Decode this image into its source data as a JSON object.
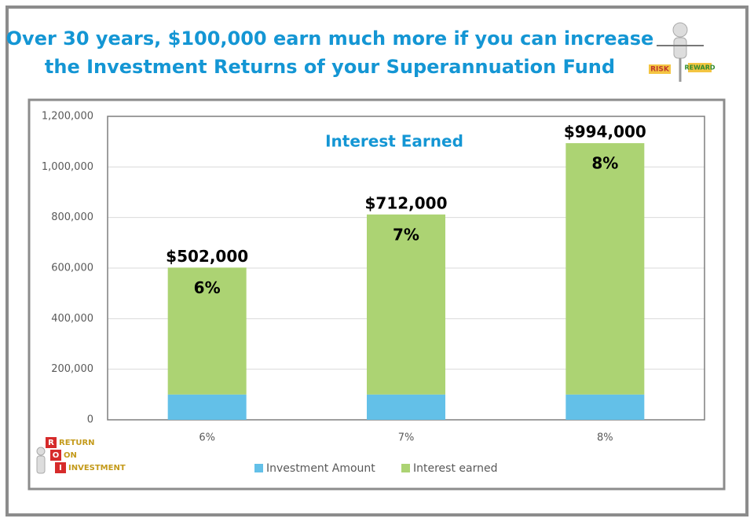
{
  "header": {
    "title_lines": [
      "Over 30 years, $100,000 earn much more if you can increase",
      "the Investment Returns of your Superannuation Fund"
    ]
  },
  "risk_reward_image": {
    "risk": "RISK",
    "reward": "REWARD"
  },
  "roi_image": {
    "letters": [
      "R",
      "O",
      "I"
    ],
    "words": [
      "RETURN",
      "ON",
      "INVESTMENT"
    ]
  },
  "chart_data": {
    "type": "stacked_bar",
    "subtitle": "Interest Earned",
    "categories": [
      "6%",
      "7%",
      "8%"
    ],
    "series": [
      {
        "name": "Investment Amount",
        "color": "#63c0e8",
        "values": [
          100000,
          100000,
          100000
        ]
      },
      {
        "name": "Interest earned",
        "color": "#acd373",
        "values": [
          502000,
          712000,
          994000
        ],
        "value_labels": [
          "$502,000",
          "$712,000",
          "$994,000"
        ]
      }
    ],
    "bar_annotations": [
      "6%",
      "7%",
      "8%"
    ],
    "ylim": [
      0,
      1200000
    ],
    "yticks": [
      0,
      {
        "value": 200000,
        "label": "200,000"
      },
      {
        "value": 400000,
        "label": "400,000"
      },
      {
        "value": 600000,
        "label": "600,000"
      },
      {
        "value": 800000,
        "label": "800,000"
      },
      {
        "value": 1000000,
        "label": "1,000,000"
      },
      {
        "value": 1200000,
        "label": "1,200,000"
      }
    ],
    "grid": true,
    "legend": "bottom"
  }
}
